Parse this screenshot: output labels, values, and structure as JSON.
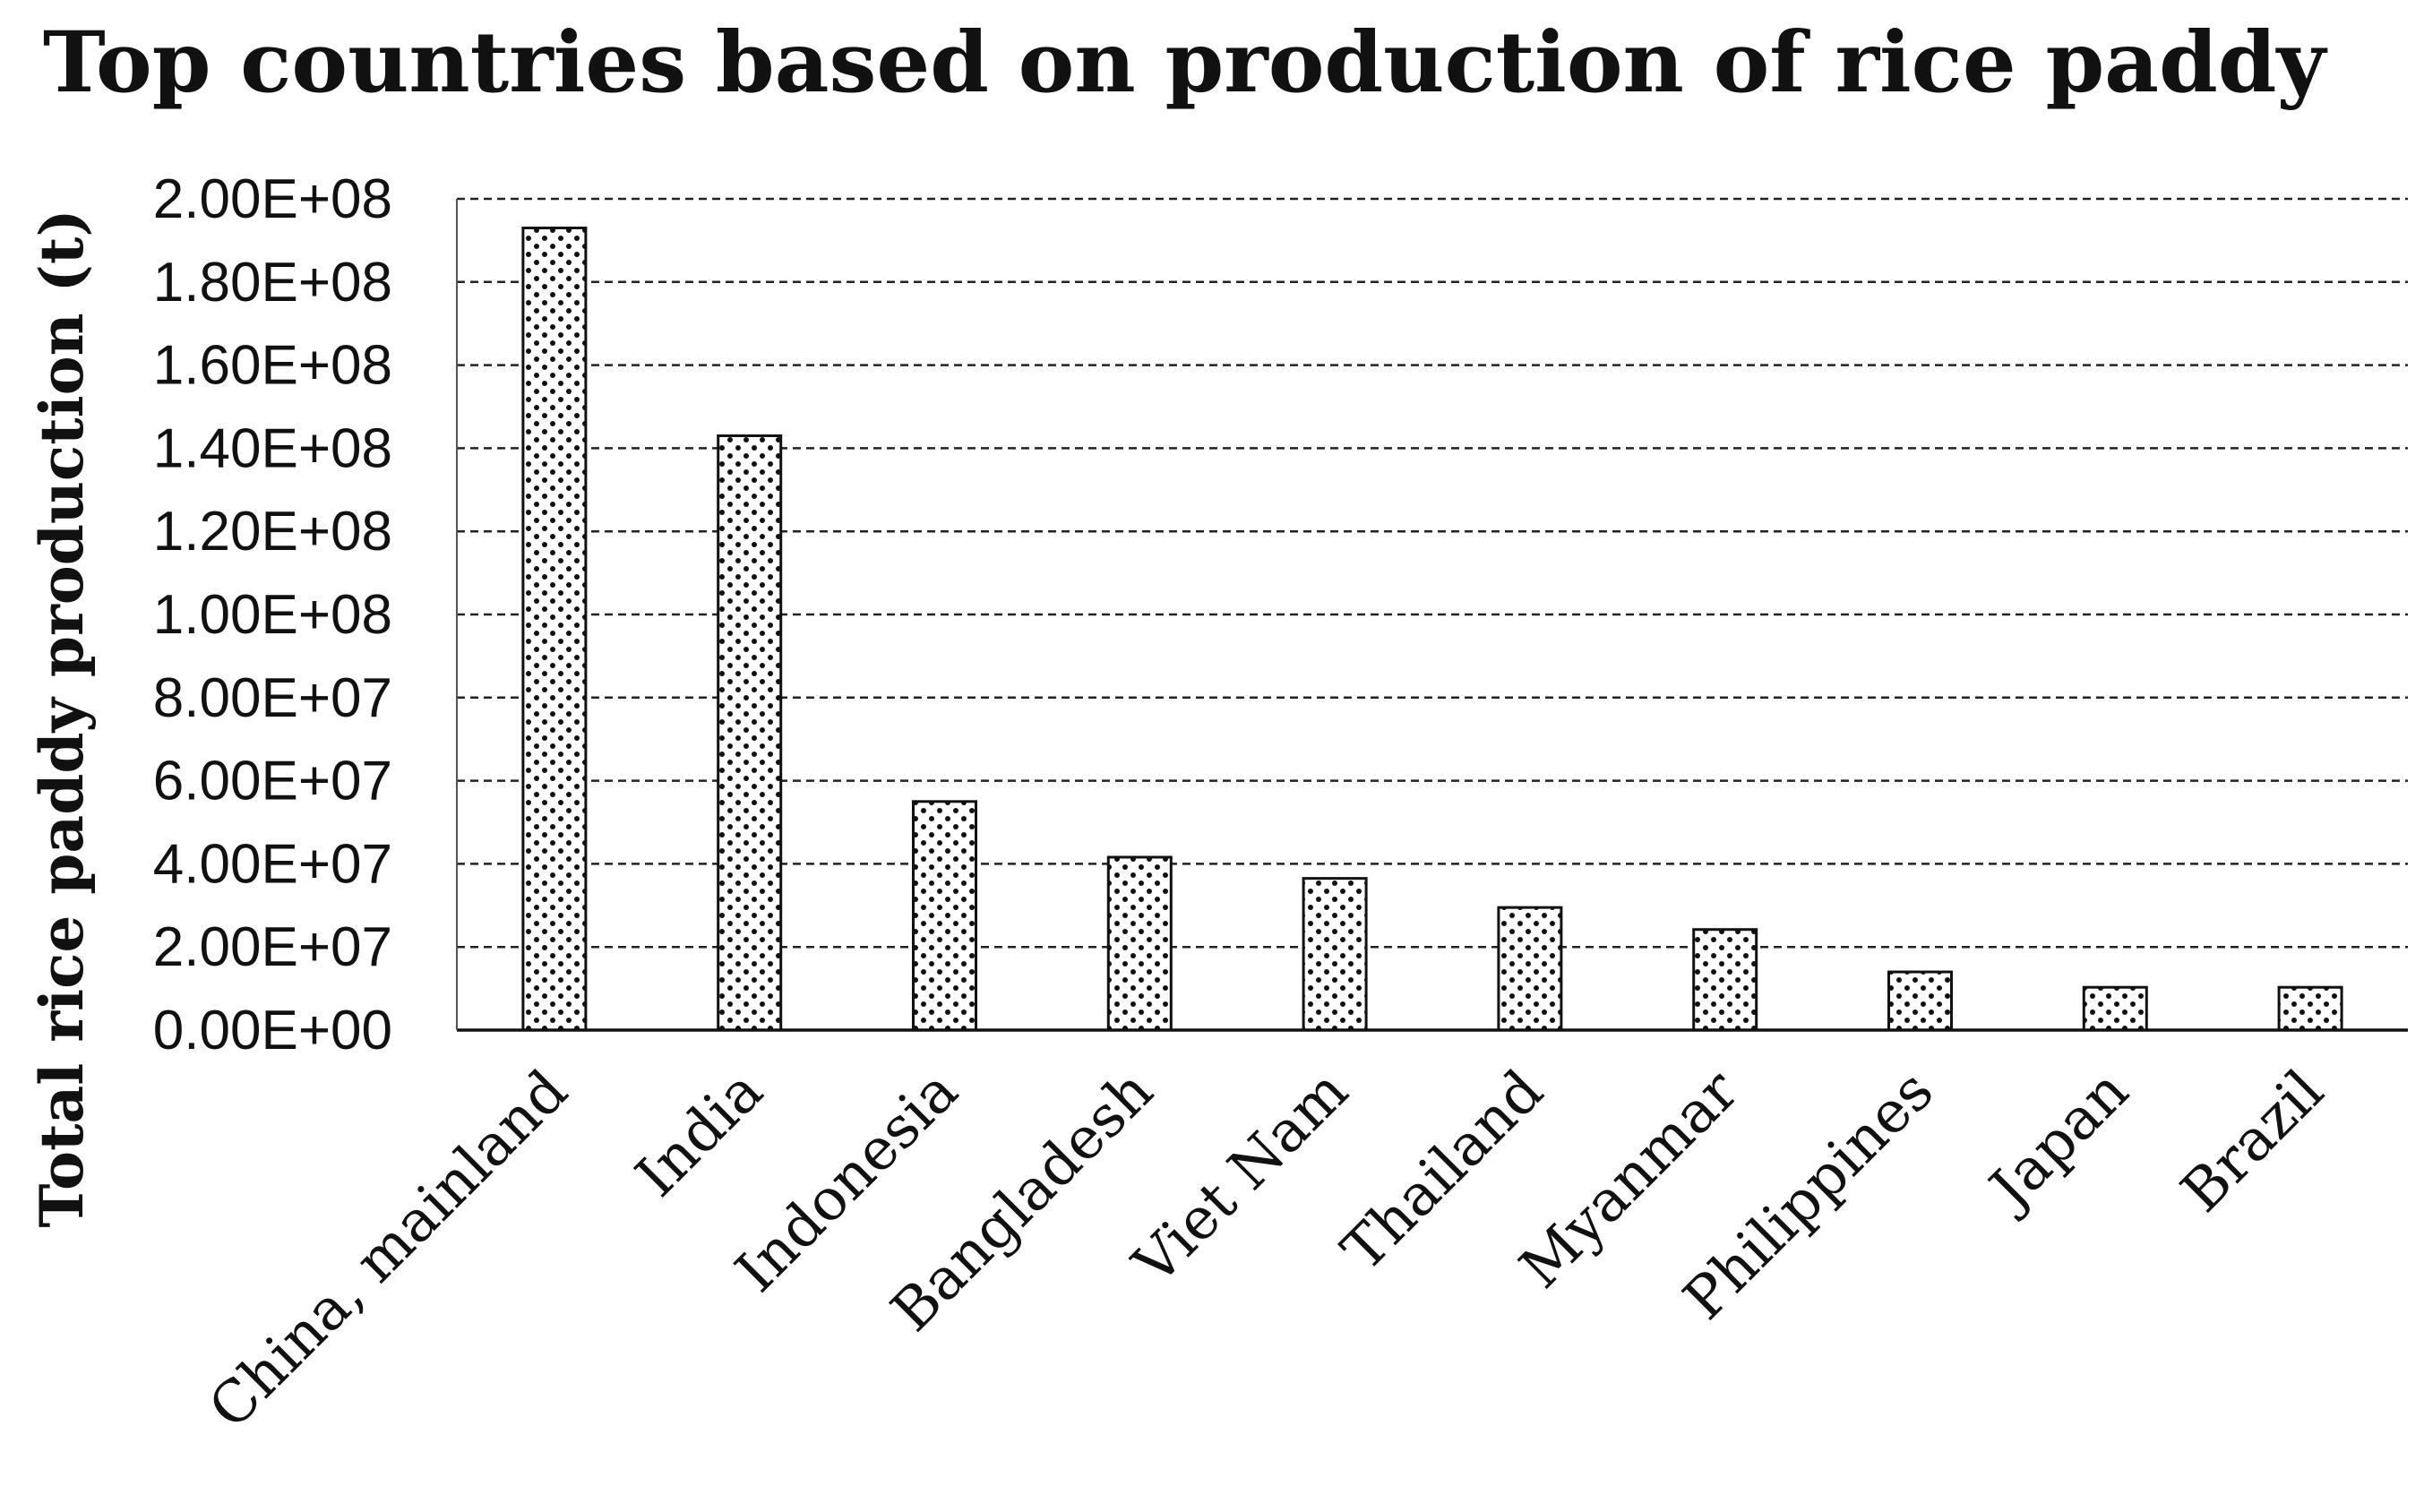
{
  "chart_data": {
    "type": "bar",
    "title": "Top countries based on production of rice paddy",
    "xlabel": "",
    "ylabel": "Total rice paddy production (t)",
    "ylim": [
      0,
      200000000
    ],
    "yticks": [
      "0.00E+00",
      "2.00E+07",
      "4.00E+07",
      "6.00E+07",
      "8.00E+07",
      "1.00E+08",
      "1.20E+08",
      "1.40E+08",
      "1.60E+08",
      "1.80E+08",
      "2.00E+08"
    ],
    "categories": [
      "China, mainland",
      "India",
      "Indonesia",
      "Bangladesh",
      "Viet Nam",
      "Thailand",
      "Myanmar",
      "Philippines",
      "Japan",
      "Brazil"
    ],
    "values": [
      193000000,
      143000000,
      55000000,
      41600000,
      36500000,
      29500000,
      24200000,
      14000000,
      10300000,
      10300000
    ],
    "grid": true,
    "legend": "none",
    "bar_fill": "dotted pattern",
    "colors": {
      "bar_stroke": "#111111",
      "dot": "#111111",
      "grid": "#222222",
      "background": "#ffffff"
    }
  }
}
